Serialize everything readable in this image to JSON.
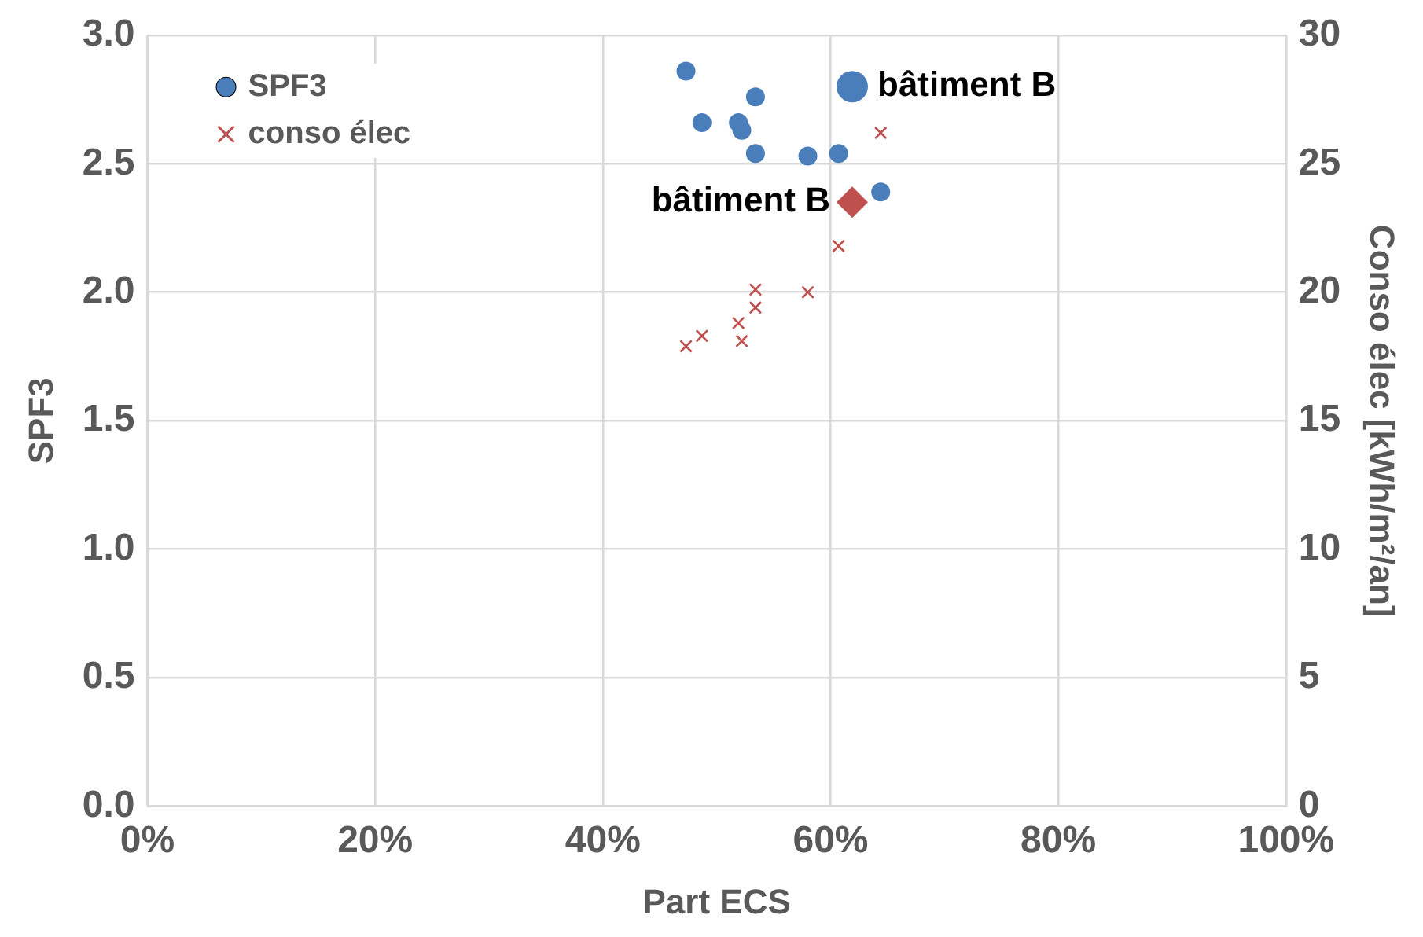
{
  "chart_data": {
    "type": "scatter",
    "xlabel": "Part ECS",
    "ylabel": "SPF3",
    "y2label": "Conso élec [kWh/m²/an]",
    "xlim": [
      0,
      100
    ],
    "xticks": [
      {
        "value": 0,
        "label": "0%"
      },
      {
        "value": 20,
        "label": "20%"
      },
      {
        "value": 40,
        "label": "40%"
      },
      {
        "value": 60,
        "label": "60%"
      },
      {
        "value": 80,
        "label": "80%"
      },
      {
        "value": 100,
        "label": "100%"
      }
    ],
    "ylim": [
      0,
      3
    ],
    "yticks": [
      {
        "value": 0,
        "label": "0.0"
      },
      0.5,
      {
        "value": 1,
        "label": "1.0"
      },
      1.5,
      {
        "value": 2,
        "label": "2.0"
      },
      2.5,
      {
        "value": 3,
        "label": "3.0"
      }
    ],
    "y2lim": [
      0,
      30
    ],
    "y2ticks": [
      0,
      5,
      10,
      15,
      20,
      25,
      30
    ],
    "grid": true,
    "legend": "top left",
    "series": [
      {
        "name": "SPF3",
        "color": "#4a7ebb",
        "marker": "circle",
        "x": [
          47.3,
          53.4,
          48.7,
          51.9,
          52.2,
          53.4,
          58.0,
          60.7,
          64.4
        ],
        "values": [
          2.86,
          2.76,
          2.66,
          2.66,
          2.63,
          2.54,
          2.53,
          2.54,
          2.39
        ]
      },
      {
        "name": "conso élec",
        "color": "#c0504d",
        "marker": "cross",
        "axis": "y2",
        "x": [
          64.4,
          60.7,
          53.4,
          53.4,
          58.0,
          51.9,
          52.2,
          48.7,
          47.3
        ],
        "values": [
          26.2,
          21.8,
          20.1,
          19.4,
          20.0,
          18.8,
          18.1,
          18.3,
          17.9
        ]
      },
      {
        "color": "#4a7ebb",
        "marker": "circle",
        "x": [
          61.9
        ],
        "values": [
          2.8
        ]
      },
      {
        "color": "#c0504d",
        "marker": "diamond",
        "axis": "y2",
        "x": [
          61.9
        ],
        "values": [
          23.5
        ]
      }
    ],
    "annotations": [
      {
        "text": "bâtiment B",
        "x": 61.9,
        "y": 2.8
      },
      {
        "text": "bâtiment B",
        "x": 61.9,
        "y": 2.35
      }
    ]
  }
}
